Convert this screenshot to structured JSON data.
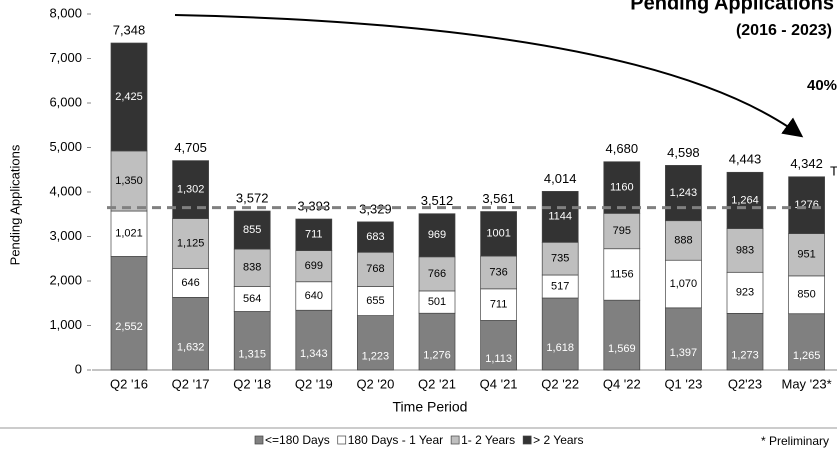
{
  "chart_data": {
    "type": "stacked_bar",
    "title": "Pending Applications",
    "subtitle": "(2016 - 2023)",
    "annotation": "40%",
    "annotation_right": "T",
    "footnote": "* Preliminary",
    "x_label": "Time Period",
    "y_label": "Pending Applications",
    "categories": [
      "Q2 '16",
      "Q2 '17",
      "Q2 '18",
      "Q2 '19",
      "Q2 '20",
      "Q2 '21",
      "Q4 '21",
      "Q2 '22",
      "Q4 '22",
      "Q1 '23",
      "Q2'23",
      "May '23*"
    ],
    "series": [
      {
        "name": "<=180 Days",
        "color": "#808080",
        "values": [
          2552,
          1632,
          1315,
          1343,
          1223,
          1276,
          1113,
          1618,
          1569,
          1397,
          1273,
          1265
        ],
        "value_labels": [
          "2,552",
          "1,632",
          "1,315",
          "1,343",
          "1,223",
          "1,276",
          "1,113",
          "1,618",
          "1,569",
          "1,397",
          "1,273",
          "1,265"
        ]
      },
      {
        "name": "180 Days - 1 Year",
        "color": "#ffffff",
        "values": [
          1021,
          646,
          564,
          640,
          655,
          501,
          711,
          517,
          1156,
          1070,
          923,
          850
        ],
        "value_labels": [
          "1,021",
          "646",
          "564",
          "640",
          "655",
          "501",
          "711",
          "517",
          "1156",
          "1,070",
          "923",
          "850"
        ]
      },
      {
        "name": "1- 2 Years",
        "color": "#bfbfbf",
        "values": [
          1350,
          1125,
          838,
          699,
          768,
          766,
          736,
          735,
          795,
          888,
          983,
          951
        ],
        "value_labels": [
          "1,350",
          "1,125",
          "838",
          "699",
          "768",
          "766",
          "736",
          "735",
          "795",
          "888",
          "983",
          "951"
        ]
      },
      {
        "name": "> 2 Years",
        "color": "#333333",
        "values": [
          2425,
          1302,
          855,
          711,
          683,
          969,
          1001,
          1144,
          1160,
          1243,
          1264,
          1276
        ],
        "value_labels": [
          "2,425",
          "1,302",
          "855",
          "711",
          "683",
          "969",
          "1001",
          "1144",
          "1160",
          "1,243",
          "1,264",
          "1276"
        ]
      }
    ],
    "totals": [
      7348,
      4705,
      3572,
      3393,
      3329,
      3512,
      3561,
      4014,
      4680,
      4598,
      4443,
      4342
    ],
    "total_labels": [
      "7,348",
      "4,705",
      "3,572",
      "3,393",
      "3,329",
      "3,512",
      "3,561",
      "4,014",
      "4,680",
      "4,598",
      "4,443",
      "4,342"
    ],
    "reference_line": 3650,
    "ylim": [
      0,
      8000
    ],
    "yticks": [
      0,
      {
        "value": 1000,
        "label": "1,000"
      },
      {
        "value": 2000,
        "label": "2,000"
      },
      {
        "value": 3000,
        "label": "3,000"
      },
      {
        "value": 4000,
        "label": "4,000"
      },
      {
        "value": 5000,
        "label": "5,000"
      },
      {
        "value": 6000,
        "label": "6,000"
      },
      {
        "value": 7000,
        "label": "7,000"
      },
      {
        "value": 8000,
        "label": "8,000"
      }
    ]
  }
}
